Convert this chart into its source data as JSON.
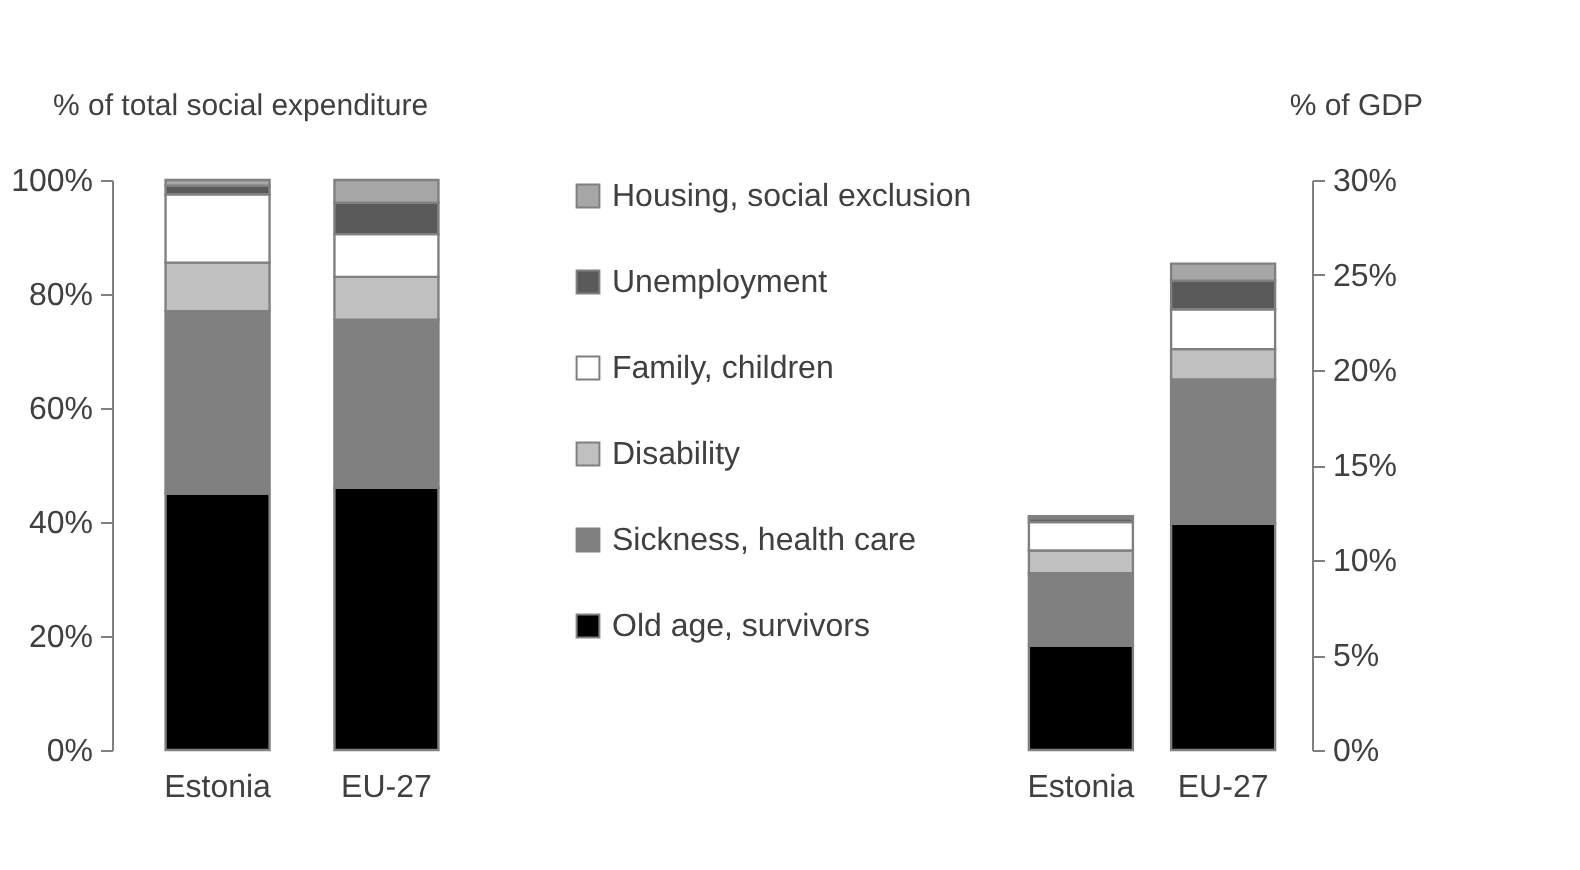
{
  "chart_data": [
    {
      "type": "bar",
      "stacked": true,
      "ylabel": "% of total social expenditure",
      "categories": [
        "Estonia",
        "EU-27"
      ],
      "ylim": [
        0,
        100
      ],
      "yticks": [
        {
          "value": 0,
          "label": "0%"
        },
        {
          "value": 20,
          "label": "20%"
        },
        {
          "value": 40,
          "label": "40%"
        },
        {
          "value": 60,
          "label": "60%"
        },
        {
          "value": 80,
          "label": "80%"
        },
        {
          "value": 100,
          "label": "100%"
        }
      ],
      "grid": false,
      "legend": "right",
      "series": [
        {
          "name": "Old age, survivors",
          "color": "#000000",
          "values": [
            45,
            46
          ]
        },
        {
          "name": "Sickness, health care",
          "color": "#808080",
          "values": [
            32,
            29.5
          ]
        },
        {
          "name": "Disability",
          "color": "#c0c0c0",
          "values": [
            8.5,
            7.5
          ]
        },
        {
          "name": "Family, children",
          "color": "#ffffff",
          "values": [
            12,
            7.5
          ]
        },
        {
          "name": "Unemployment",
          "color": "#5a5a5a",
          "values": [
            1.5,
            5.5
          ]
        },
        {
          "name": "Housing, social exclusion",
          "color": "#a6a6a6",
          "values": [
            1,
            4
          ]
        }
      ]
    },
    {
      "type": "bar",
      "stacked": true,
      "ylabel": "% of GDP",
      "categories": [
        "Estonia",
        "EU-27"
      ],
      "ylim": [
        0,
        30
      ],
      "yticks": [
        {
          "value": 0,
          "label": "0%"
        },
        {
          "value": 5,
          "label": "5%"
        },
        {
          "value": 10,
          "label": "10%"
        },
        {
          "value": 15,
          "label": "15%"
        },
        {
          "value": 20,
          "label": "20%"
        },
        {
          "value": 25,
          "label": "25%"
        },
        {
          "value": 30,
          "label": "30%"
        }
      ],
      "grid": false,
      "legend": false,
      "series": [
        {
          "color": "#000000",
          "values": [
            5.5,
            11.9
          ]
        },
        {
          "color": "#808080",
          "values": [
            3.8,
            7.6
          ]
        },
        {
          "color": "#c0c0c0",
          "values": [
            1.2,
            1.6
          ]
        },
        {
          "color": "#ffffff",
          "values": [
            1.5,
            2.1
          ]
        },
        {
          "color": "#5a5a5a",
          "values": [
            0.2,
            1.5
          ]
        },
        {
          "color": "#a6a6a6",
          "values": [
            0.1,
            0.9
          ]
        }
      ]
    }
  ]
}
